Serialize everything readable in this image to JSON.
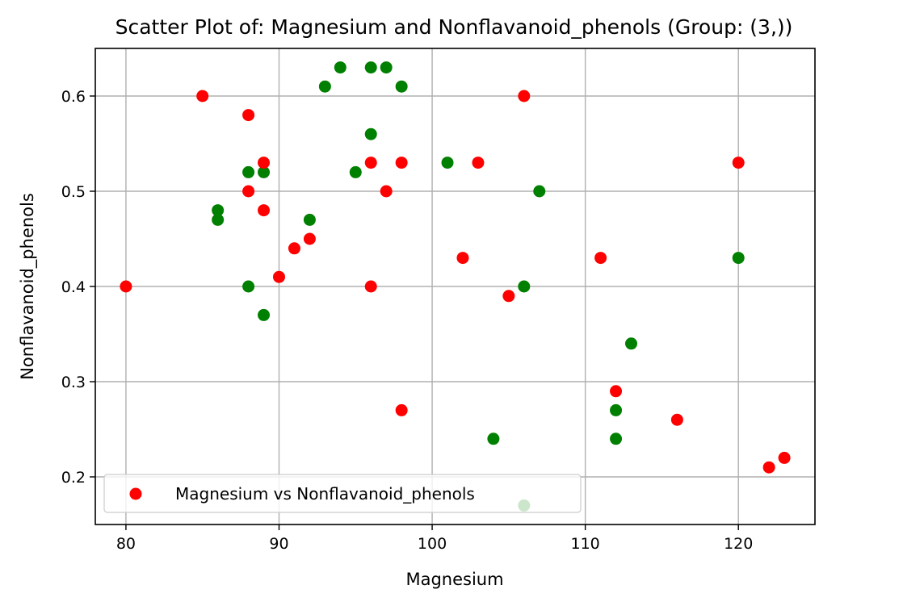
{
  "chart_data": {
    "type": "scatter",
    "title": "Scatter Plot of: Magnesium and Nonflavanoid_phenols (Group: (3,))",
    "xlabel": "Magnesium",
    "ylabel": "Nonflavanoid_phenols",
    "xlim": [
      78,
      125
    ],
    "ylim": [
      0.15,
      0.65
    ],
    "xticks": [
      80,
      90,
      100,
      110,
      120
    ],
    "xtick_labels": [
      "80",
      "90",
      "100",
      "110",
      "120"
    ],
    "yticks": [
      0.2,
      0.3,
      0.4,
      0.5,
      0.6
    ],
    "ytick_labels": [
      "0.2",
      "0.3",
      "0.4",
      "0.5",
      "0.6"
    ],
    "grid": true,
    "legend_position": "lower-left",
    "legend": [
      "Magnesium vs Nonflavanoid_phenols"
    ],
    "series": [
      {
        "color": "#008000",
        "points": [
          [
            94,
            0.63
          ],
          [
            96,
            0.63
          ],
          [
            97,
            0.63
          ],
          [
            93,
            0.61
          ],
          [
            98,
            0.61
          ],
          [
            96,
            0.56
          ],
          [
            88,
            0.52
          ],
          [
            89,
            0.52
          ],
          [
            95,
            0.52
          ],
          [
            101,
            0.53
          ],
          [
            86,
            0.48
          ],
          [
            86,
            0.47
          ],
          [
            107,
            0.5
          ],
          [
            92,
            0.47
          ],
          [
            88,
            0.4
          ],
          [
            89,
            0.37
          ],
          [
            106,
            0.4
          ],
          [
            120,
            0.43
          ],
          [
            113,
            0.34
          ],
          [
            112,
            0.27
          ],
          [
            112,
            0.24
          ],
          [
            104,
            0.24
          ],
          [
            106,
            0.17
          ]
        ]
      },
      {
        "name": "Magnesium vs Nonflavanoid_phenols",
        "color": "#ff0000",
        "points": [
          [
            80,
            0.4
          ],
          [
            85,
            0.6
          ],
          [
            88,
            0.58
          ],
          [
            89,
            0.53
          ],
          [
            88,
            0.5
          ],
          [
            89,
            0.48
          ],
          [
            92,
            0.45
          ],
          [
            91,
            0.44
          ],
          [
            90,
            0.41
          ],
          [
            96,
            0.53
          ],
          [
            98,
            0.53
          ],
          [
            97,
            0.5
          ],
          [
            96,
            0.4
          ],
          [
            98,
            0.27
          ],
          [
            103,
            0.53
          ],
          [
            102,
            0.43
          ],
          [
            105,
            0.39
          ],
          [
            106,
            0.6
          ],
          [
            111,
            0.43
          ],
          [
            112,
            0.29
          ],
          [
            116,
            0.26
          ],
          [
            120,
            0.53
          ],
          [
            122,
            0.21
          ],
          [
            123,
            0.22
          ]
        ]
      }
    ]
  }
}
